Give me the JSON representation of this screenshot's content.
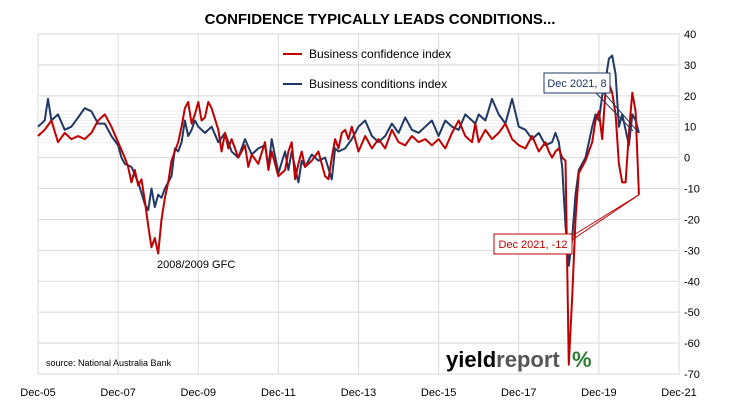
{
  "chart_data": {
    "type": "line",
    "title": "CONFIDENCE TYPICALLY LEADS CONDITIONS...",
    "source": "source: National Australia Bank",
    "brand": {
      "part1": "yield",
      "part2": "report",
      "symbol": "%"
    },
    "ylim": [
      -70,
      40
    ],
    "y_ticks": [
      40,
      30,
      20,
      10,
      0,
      -10,
      -20,
      -30,
      -40,
      -50,
      -60,
      -70
    ],
    "x_ticks": [
      "Dec-05",
      "Dec-07",
      "Dec-09",
      "Dec-11",
      "Dec-13",
      "Dec-15",
      "Dec-17",
      "Dec-19",
      "Dec-21"
    ],
    "x_range_months": [
      0,
      192
    ],
    "grid": true,
    "legend_position": "top-center",
    "series": [
      {
        "name": "Business confidence index",
        "color": "#c00000",
        "points": [
          [
            0,
            7
          ],
          [
            2,
            9
          ],
          [
            4,
            12
          ],
          [
            6,
            5
          ],
          [
            8,
            8
          ],
          [
            10,
            6
          ],
          [
            12,
            7
          ],
          [
            14,
            6
          ],
          [
            16,
            8
          ],
          [
            18,
            12
          ],
          [
            20,
            14
          ],
          [
            22,
            10
          ],
          [
            24,
            5
          ],
          [
            26,
            0
          ],
          [
            27,
            -3
          ],
          [
            28,
            -8
          ],
          [
            29,
            -4
          ],
          [
            30,
            -9
          ],
          [
            31,
            -7
          ],
          [
            32,
            -14
          ],
          [
            33,
            -22
          ],
          [
            34,
            -29
          ],
          [
            35,
            -26
          ],
          [
            36,
            -31
          ],
          [
            37,
            -20
          ],
          [
            38,
            -13
          ],
          [
            39,
            -8
          ],
          [
            40,
            -1
          ],
          [
            42,
            5
          ],
          [
            43,
            10
          ],
          [
            44,
            16
          ],
          [
            45,
            18
          ],
          [
            46,
            11
          ],
          [
            47,
            14
          ],
          [
            48,
            18
          ],
          [
            49,
            12
          ],
          [
            50,
            13
          ],
          [
            51,
            18
          ],
          [
            52,
            16
          ],
          [
            54,
            9
          ],
          [
            55,
            2
          ],
          [
            56,
            8
          ],
          [
            57,
            3
          ],
          [
            58,
            6
          ],
          [
            60,
            0
          ],
          [
            62,
            4
          ],
          [
            63,
            -3
          ],
          [
            64,
            1
          ],
          [
            66,
            -2
          ],
          [
            68,
            5
          ],
          [
            69,
            -4
          ],
          [
            70,
            2
          ],
          [
            72,
            -6
          ],
          [
            74,
            -4
          ],
          [
            75,
            2
          ],
          [
            76,
            5
          ],
          [
            77,
            -7
          ],
          [
            78,
            -2
          ],
          [
            79,
            2
          ],
          [
            80,
            -3
          ],
          [
            82,
            -1
          ],
          [
            84,
            2
          ],
          [
            86,
            -6
          ],
          [
            87,
            -7
          ],
          [
            88,
            0
          ],
          [
            89,
            6
          ],
          [
            90,
            3
          ],
          [
            91,
            8
          ],
          [
            92,
            9
          ],
          [
            93,
            6
          ],
          [
            94,
            10
          ],
          [
            96,
            2
          ],
          [
            98,
            7
          ],
          [
            100,
            3
          ],
          [
            102,
            6
          ],
          [
            104,
            3
          ],
          [
            106,
            9
          ],
          [
            108,
            5
          ],
          [
            110,
            4
          ],
          [
            112,
            7
          ],
          [
            114,
            5
          ],
          [
            116,
            6
          ],
          [
            118,
            4
          ],
          [
            120,
            6
          ],
          [
            122,
            3
          ],
          [
            124,
            8
          ],
          [
            126,
            12
          ],
          [
            128,
            7
          ],
          [
            130,
            5
          ],
          [
            131,
            11
          ],
          [
            132,
            5
          ],
          [
            134,
            9
          ],
          [
            136,
            6
          ],
          [
            138,
            8
          ],
          [
            140,
            11
          ],
          [
            142,
            6
          ],
          [
            144,
            4
          ],
          [
            146,
            3
          ],
          [
            148,
            7
          ],
          [
            150,
            2
          ],
          [
            152,
            5
          ],
          [
            153,
            2
          ],
          [
            154,
            0
          ],
          [
            155,
            2
          ],
          [
            156,
            3
          ],
          [
            157,
            0
          ],
          [
            158,
            -1
          ],
          [
            159,
            -67
          ],
          [
            160,
            -45
          ],
          [
            161,
            -20
          ],
          [
            162,
            -5
          ],
          [
            164,
            -1
          ],
          [
            166,
            5
          ],
          [
            167,
            12
          ],
          [
            168,
            15
          ],
          [
            169,
            6
          ],
          [
            170,
            22
          ],
          [
            171,
            24
          ],
          [
            172,
            21
          ],
          [
            173,
            14
          ],
          [
            174,
            -2
          ],
          [
            175,
            -8
          ],
          [
            176,
            -8
          ],
          [
            177,
            8
          ],
          [
            178,
            21
          ],
          [
            179,
            15
          ],
          [
            180,
            -12
          ]
        ]
      },
      {
        "name": "Business conditions index",
        "color": "#1f3864",
        "points": [
          [
            0,
            10
          ],
          [
            2,
            12
          ],
          [
            3,
            19
          ],
          [
            4,
            12
          ],
          [
            6,
            14
          ],
          [
            8,
            9
          ],
          [
            10,
            10
          ],
          [
            12,
            13
          ],
          [
            14,
            16
          ],
          [
            16,
            15
          ],
          [
            18,
            11
          ],
          [
            20,
            11
          ],
          [
            22,
            7
          ],
          [
            24,
            4
          ],
          [
            25,
            0
          ],
          [
            26,
            -2
          ],
          [
            28,
            -3
          ],
          [
            30,
            -8
          ],
          [
            32,
            -15
          ],
          [
            33,
            -17
          ],
          [
            34,
            -10
          ],
          [
            35,
            -16
          ],
          [
            36,
            -12
          ],
          [
            37,
            -13
          ],
          [
            38,
            -10
          ],
          [
            40,
            -6
          ],
          [
            41,
            3
          ],
          [
            42,
            2
          ],
          [
            43,
            5
          ],
          [
            44,
            12
          ],
          [
            45,
            7
          ],
          [
            46,
            9
          ],
          [
            47,
            12
          ],
          [
            48,
            10
          ],
          [
            50,
            8
          ],
          [
            52,
            10
          ],
          [
            54,
            5
          ],
          [
            56,
            8
          ],
          [
            58,
            2
          ],
          [
            60,
            0
          ],
          [
            62,
            6
          ],
          [
            64,
            1
          ],
          [
            66,
            3
          ],
          [
            68,
            4
          ],
          [
            69,
            -3
          ],
          [
            70,
            6
          ],
          [
            72,
            -5
          ],
          [
            74,
            2
          ],
          [
            75,
            -4
          ],
          [
            76,
            2
          ],
          [
            78,
            -8
          ],
          [
            79,
            -1
          ],
          [
            80,
            -3
          ],
          [
            82,
            1
          ],
          [
            84,
            -1
          ],
          [
            86,
            0
          ],
          [
            88,
            -7
          ],
          [
            89,
            3
          ],
          [
            90,
            2
          ],
          [
            92,
            3
          ],
          [
            94,
            6
          ],
          [
            96,
            10
          ],
          [
            98,
            12
          ],
          [
            100,
            7
          ],
          [
            102,
            5
          ],
          [
            104,
            7
          ],
          [
            106,
            11
          ],
          [
            108,
            8
          ],
          [
            110,
            13
          ],
          [
            112,
            9
          ],
          [
            114,
            8
          ],
          [
            116,
            10
          ],
          [
            118,
            12
          ],
          [
            120,
            7
          ],
          [
            122,
            12
          ],
          [
            124,
            10
          ],
          [
            126,
            9
          ],
          [
            128,
            14
          ],
          [
            130,
            12
          ],
          [
            131,
            11
          ],
          [
            132,
            14
          ],
          [
            134,
            12
          ],
          [
            136,
            19
          ],
          [
            138,
            14
          ],
          [
            140,
            11
          ],
          [
            142,
            19
          ],
          [
            144,
            10
          ],
          [
            146,
            9
          ],
          [
            148,
            6
          ],
          [
            150,
            8
          ],
          [
            152,
            4
          ],
          [
            154,
            5
          ],
          [
            155,
            8
          ],
          [
            156,
            5
          ],
          [
            157,
            -3
          ],
          [
            158,
            -22
          ],
          [
            159,
            -35
          ],
          [
            160,
            -26
          ],
          [
            161,
            -12
          ],
          [
            162,
            -4
          ],
          [
            164,
            0
          ],
          [
            165,
            5
          ],
          [
            166,
            10
          ],
          [
            167,
            14
          ],
          [
            168,
            12
          ],
          [
            169,
            20
          ],
          [
            170,
            25
          ],
          [
            171,
            32
          ],
          [
            172,
            33
          ],
          [
            173,
            27
          ],
          [
            174,
            10
          ],
          [
            175,
            14
          ],
          [
            176,
            9
          ],
          [
            177,
            4
          ],
          [
            178,
            14
          ],
          [
            179,
            12
          ],
          [
            180,
            8
          ]
        ]
      }
    ],
    "annotations": [
      {
        "text": "Dec 2021, 8",
        "color": "#1f3864",
        "target": [
          180,
          8
        ],
        "label_anchor": [
          170,
          23
        ]
      },
      {
        "text": "Dec 2021, -12",
        "color": "#c00000",
        "target": [
          180,
          -12
        ],
        "label_anchor": [
          160,
          -28
        ]
      },
      {
        "text": "2008/2009 GFC",
        "color": "#000000",
        "target": [
          36,
          -31
        ],
        "label_anchor": [
          37,
          -35
        ]
      }
    ]
  }
}
